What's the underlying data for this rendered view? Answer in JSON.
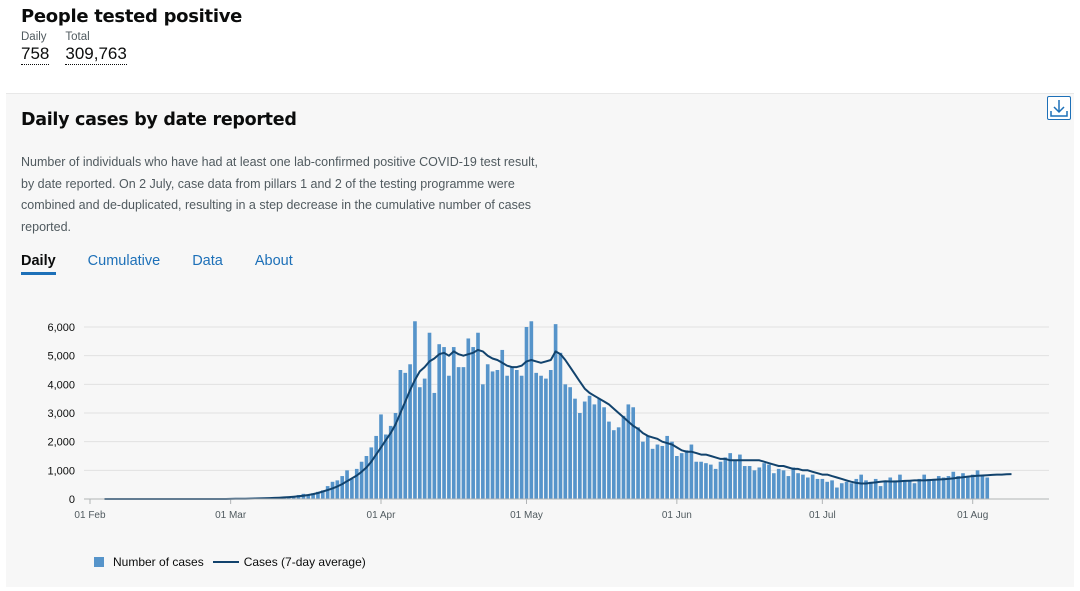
{
  "headline": {
    "title": "People tested positive",
    "daily_label": "Daily",
    "daily_value": "758",
    "total_label": "Total",
    "total_value": "309,763"
  },
  "card": {
    "title": "Daily cases by date reported",
    "description": "Number of individuals who have had at least one lab-confirmed positive COVID-19 test result, by date reported. On 2 July, case data from pillars 1 and 2 of the testing programme were combined and de-duplicated, resulting in a step decrease in the cumulative number of cases reported.",
    "download_icon": "download-icon",
    "tabs": [
      {
        "label": "Daily",
        "active": true
      },
      {
        "label": "Cumulative",
        "active": false
      },
      {
        "label": "Data",
        "active": false
      },
      {
        "label": "About",
        "active": false
      }
    ]
  },
  "colors": {
    "bar": "#5694ca",
    "line": "#12436d",
    "link": "#1d70b8",
    "grid": "#e2e2e2"
  },
  "chart_data": {
    "type": "bar",
    "x_start": "01 Feb",
    "x_ticks": [
      "01 Feb",
      "01 Mar",
      "01 Apr",
      "01 May",
      "01 Jun",
      "01 Jul",
      "01 Aug"
    ],
    "x_tick_day_index": [
      0,
      29,
      60,
      90,
      121,
      151,
      182
    ],
    "yticks": [
      0,
      1000,
      2000,
      3000,
      4000,
      5000,
      6000
    ],
    "ytick_labels": [
      "0",
      "1,000",
      "2,000",
      "3,000",
      "4,000",
      "5,000",
      "6,000"
    ],
    "ylim": [
      0,
      6500
    ],
    "grid": true,
    "legend_position": "bottom-left",
    "series": [
      {
        "name": "Number of cases",
        "type": "bar",
        "values": [
          0,
          0,
          0,
          0,
          0,
          0,
          0,
          0,
          0,
          0,
          0,
          0,
          0,
          0,
          0,
          0,
          0,
          0,
          0,
          0,
          0,
          0,
          0,
          0,
          0,
          0,
          0,
          0,
          0,
          0,
          0,
          10,
          3,
          5,
          12,
          20,
          30,
          25,
          40,
          50,
          60,
          70,
          80,
          140,
          180,
          150,
          200,
          250,
          300,
          450,
          600,
          650,
          800,
          1000,
          700,
          1050,
          1300,
          1500,
          1800,
          2200,
          2950,
          2250,
          2550,
          3000,
          4500,
          4400,
          4700,
          6200,
          3900,
          4200,
          5800,
          3700,
          5400,
          5300,
          4300,
          5300,
          4600,
          4600,
          5600,
          5300,
          5800,
          4000,
          4700,
          4450,
          4500,
          5200,
          4300,
          4600,
          4500,
          4300,
          6000,
          6200,
          4400,
          4300,
          4200,
          4500,
          6100,
          5100,
          4000,
          3900,
          3500,
          3000,
          3400,
          3600,
          3300,
          3500,
          3200,
          2700,
          2400,
          2500,
          2900,
          3300,
          3200,
          2500,
          2000,
          2200,
          1750,
          1900,
          1850,
          2200,
          2000,
          1500,
          1600,
          1700,
          1900,
          1300,
          1300,
          1250,
          1200,
          1050,
          1300,
          1450,
          1600,
          1350,
          1550,
          1150,
          1150,
          1000,
          1100,
          1250,
          1200,
          900,
          1050,
          1000,
          800,
          1100,
          900,
          850,
          750,
          850,
          700,
          700,
          600,
          650,
          400,
          550,
          600,
          550,
          700,
          850,
          650,
          600,
          700,
          450,
          600,
          750,
          650,
          850,
          650,
          650,
          550,
          700,
          850,
          700,
          700,
          800,
          750,
          800,
          950,
          800,
          900,
          750,
          850,
          1000,
          800,
          750
        ]
      },
      {
        "name": "Cases (7-day average)",
        "type": "line",
        "values": [
          0,
          0,
          0,
          0,
          0,
          0,
          0,
          0,
          0,
          0,
          0,
          0,
          0,
          0,
          0,
          0,
          0,
          0,
          0,
          0,
          0,
          0,
          0,
          0,
          0,
          0,
          0,
          0,
          0,
          5,
          8,
          10,
          12,
          15,
          18,
          22,
          28,
          32,
          38,
          45,
          55,
          65,
          80,
          95,
          115,
          140,
          170,
          210,
          260,
          310,
          370,
          440,
          520,
          620,
          720,
          820,
          950,
          1100,
          1300,
          1550,
          1800,
          2050,
          2300,
          2600,
          3000,
          3400,
          3800,
          4150,
          4450,
          4600,
          4800,
          4900,
          5050,
          5100,
          5000,
          5150,
          5050,
          5000,
          5050,
          5100,
          5200,
          5150,
          5000,
          4900,
          4850,
          4750,
          4650,
          4600,
          4600,
          4650,
          4800,
          4850,
          4800,
          4750,
          4800,
          4850,
          5150,
          5050,
          4850,
          4600,
          4350,
          4100,
          3850,
          3700,
          3600,
          3500,
          3400,
          3300,
          3150,
          3000,
          2850,
          2700,
          2550,
          2450,
          2300,
          2200,
          2150,
          2100,
          2000,
          1950,
          1900,
          1800,
          1700,
          1650,
          1650,
          1600,
          1550,
          1550,
          1500,
          1450,
          1400,
          1400,
          1350,
          1350,
          1350,
          1350,
          1350,
          1350,
          1350,
          1300,
          1250,
          1200,
          1150,
          1150,
          1100,
          1050,
          1050,
          1000,
          1000,
          950,
          900,
          850,
          850,
          800,
          750,
          700,
          650,
          600,
          560,
          540,
          540,
          560,
          580,
          600,
          620,
          610,
          610,
          620,
          630,
          640,
          650,
          650,
          650,
          660,
          670,
          680,
          690,
          700,
          720,
          740,
          760,
          780,
          800,
          810,
          820,
          830,
          840,
          850,
          850,
          860,
          870
        ]
      }
    ]
  }
}
